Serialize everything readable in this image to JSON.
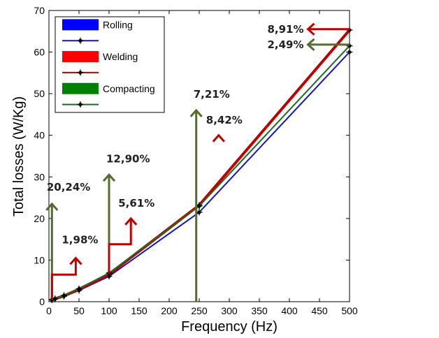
{
  "chart_data": {
    "type": "line",
    "title": "",
    "xlabel": "Frequency (Hz)",
    "ylabel": "Total losses (W/Kg)",
    "xlim": [
      0,
      500
    ],
    "ylim": [
      0,
      70
    ],
    "xticks": [
      0,
      50,
      100,
      150,
      200,
      250,
      300,
      350,
      400,
      450,
      500
    ],
    "yticks": [
      0,
      10,
      20,
      30,
      40,
      50,
      60,
      70
    ],
    "grid": false,
    "legend_position": "top-left",
    "x": [
      5,
      10,
      25,
      50,
      100,
      250,
      500
    ],
    "series": [
      {
        "name": "Rolling",
        "color": "#1515c8",
        "values": [
          0.4,
          0.6,
          1.3,
          2.7,
          6.1,
          21.5,
          60.0
        ]
      },
      {
        "name": "Welding",
        "color": "#c00000",
        "values": [
          0.5,
          0.7,
          1.4,
          3.0,
          6.6,
          23.2,
          65.3
        ]
      },
      {
        "name": "Compacting",
        "color": "#1a6e1a",
        "values": [
          0.5,
          0.7,
          1.5,
          3.1,
          6.9,
          23.0,
          61.5
        ]
      }
    ],
    "legend_entries": [
      {
        "label": "Rolling",
        "kind": "patch",
        "color": "#0000ff"
      },
      {
        "label": "",
        "kind": "line-marker",
        "color": "#1515c8"
      },
      {
        "label": "Welding",
        "kind": "patch",
        "color": "#ff0000"
      },
      {
        "label": "",
        "kind": "line-marker",
        "color": "#c00000"
      },
      {
        "label": "Compacting",
        "kind": "patch",
        "color": "#008000"
      },
      {
        "label": "",
        "kind": "line-marker",
        "color": "#1a6e1a"
      }
    ],
    "annotations": [
      {
        "text": "20,24%",
        "color": "#556b2f",
        "at_x": 5,
        "arrow_to_y": 23.5,
        "label_x": 1,
        "label_y": 26.7
      },
      {
        "text": "1,98%",
        "color": "#c00000",
        "at_x": 5,
        "arrow_to_y": 10.5,
        "label_x": 33,
        "label_y": 14.0
      },
      {
        "text": "12,90%",
        "color": "#556b2f",
        "at_x": 100,
        "arrow_to_y": 30.5,
        "label_x": 100,
        "label_y": 33.5
      },
      {
        "text": "5,61%",
        "color": "#c00000",
        "at_x": 100,
        "arrow_to_y": 20.0,
        "label_x": 127,
        "label_y": 22.8
      },
      {
        "text": "7,21%",
        "color": "#556b2f",
        "at_x": 245,
        "arrow_to_y": 46.0,
        "label_x": 245,
        "label_y": 49.0
      },
      {
        "text": "8,42%",
        "color": "#c00000",
        "at_x": 245,
        "arrow_to_y": 40.0,
        "label_x": 273,
        "label_y": 42.8
      },
      {
        "text": "8,91%",
        "color": "#c00000",
        "at_x": 500,
        "arrow_to_y": 65.5,
        "label_x": 425,
        "label_y": 65.5
      },
      {
        "text": "2,49%",
        "color": "#556b2f",
        "at_x": 500,
        "arrow_to_y": 61.8,
        "label_x": 425,
        "label_y": 61.8
      }
    ]
  }
}
